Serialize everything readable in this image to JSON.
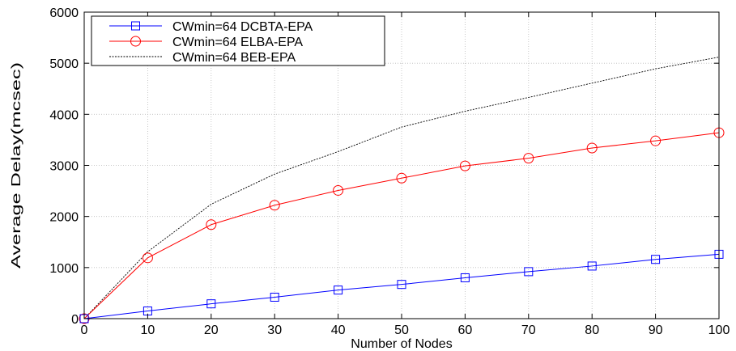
{
  "chart_data": {
    "type": "line",
    "title": "",
    "xlabel": "Number of Nodes",
    "ylabel": "Average Delay(mcsec)",
    "x": [
      0,
      10,
      20,
      30,
      40,
      50,
      60,
      70,
      80,
      90,
      100
    ],
    "xlim": [
      0,
      100
    ],
    "ylim": [
      0,
      6000
    ],
    "xticks": [
      "0",
      "10",
      "20",
      "30",
      "40",
      "50",
      "60",
      "70",
      "80",
      "90",
      "100"
    ],
    "yticks": [
      "0",
      "1000",
      "2000",
      "3000",
      "4000",
      "5000",
      "6000"
    ],
    "grid": true,
    "legend_position": "top-left",
    "series": [
      {
        "name": "CWmin=64 DCBTA-EPA",
        "color": "#0000ff",
        "marker": "square",
        "dash": "solid",
        "values": [
          0,
          150,
          290,
          420,
          560,
          670,
          800,
          920,
          1030,
          1160,
          1260
        ]
      },
      {
        "name": "CWmin=64 ELBA-EPA",
        "color": "#ff0000",
        "marker": "circle",
        "dash": "solid",
        "values": [
          0,
          1190,
          1840,
          2220,
          2510,
          2750,
          2990,
          3140,
          3340,
          3480,
          3640
        ]
      },
      {
        "name": "CWmin=64 BEB-EPA",
        "color": "#000000",
        "marker": "none",
        "dash": "dotted",
        "values": [
          0,
          1310,
          2240,
          2830,
          3270,
          3750,
          4060,
          4330,
          4610,
          4890,
          5120
        ]
      }
    ]
  }
}
